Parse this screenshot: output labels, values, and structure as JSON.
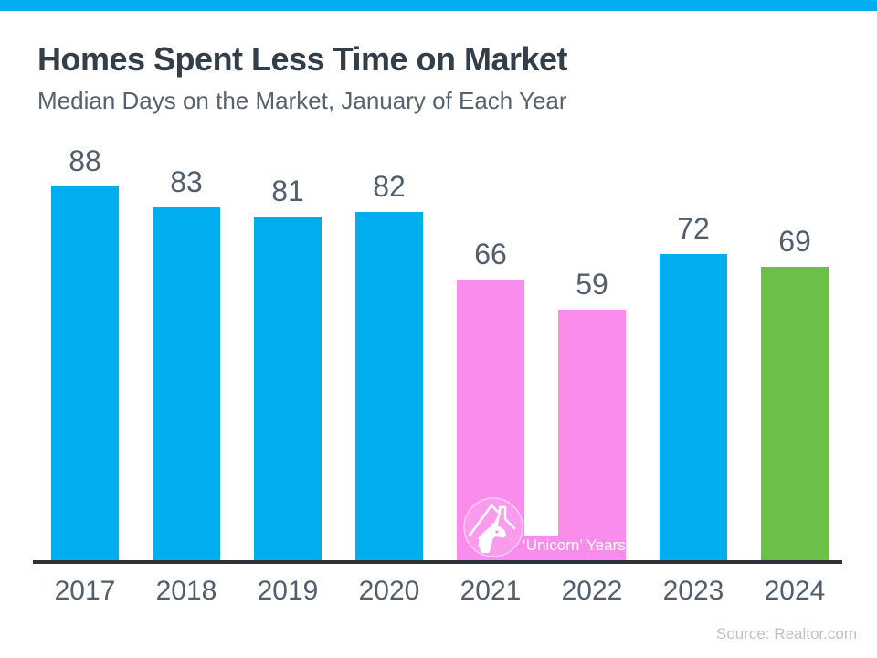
{
  "page": {
    "title": "Homes Spent Less Time on Market",
    "subtitle": "Median Days on the Market, January of Each Year",
    "source": "Source: Realtor.com",
    "accent_color": "#00AEEF"
  },
  "chart_data": {
    "type": "bar",
    "title": "Homes Spent Less Time on Market",
    "subtitle": "Median Days on the Market, January of Each Year",
    "categories": [
      "2017",
      "2018",
      "2019",
      "2020",
      "2021",
      "2022",
      "2023",
      "2024"
    ],
    "values": [
      88,
      83,
      81,
      82,
      66,
      59,
      72,
      69
    ],
    "bar_colors": [
      "#00AEEF",
      "#00AEEF",
      "#00AEEF",
      "#00AEEF",
      "#FA8CEC",
      "#FA8CEC",
      "#00AEEF",
      "#6CC04A"
    ],
    "xlabel": "",
    "ylabel": "Median Days on the Market",
    "ylim": [
      0,
      95
    ],
    "grid": false,
    "legend": false,
    "value_labels_shown": true,
    "annotation": {
      "label": "‘Unicorn’ Years",
      "applies_to": [
        "2021",
        "2022"
      ],
      "icon": "unicorn-house-icon",
      "color": "#FA8CEC",
      "text_color": "#FFFFFF"
    },
    "colors": {
      "value_label": "#525E6B",
      "tick_label": "#525E6B",
      "axis": "#2F3237"
    }
  }
}
